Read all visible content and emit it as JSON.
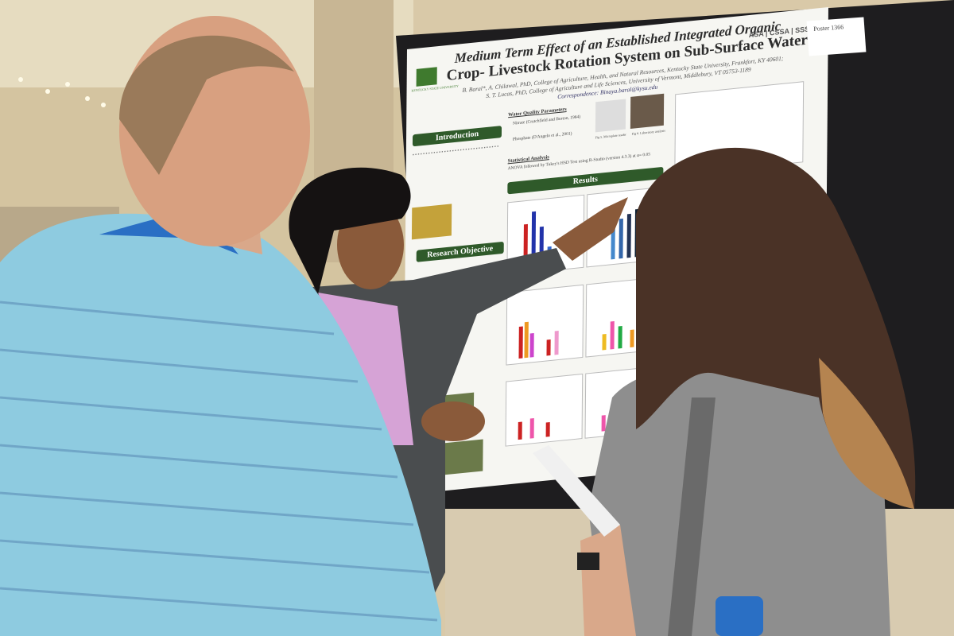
{
  "poster": {
    "title_line1": "Medium Term Effect of an Established Integrated Organic",
    "title_line2": "Crop- Livestock Rotation System on Sub-Surface Water Quality",
    "authors_line1": "B. Baral*, A. Chilawal, PhD, College of Agriculture, Health, and Natural Resources, Kentucky State University, Frankfort, KY 40601;",
    "authors_line2": "S. T. Lucas, PhD, College of Agriculture and Life Sciences, University of Vermont, Middlebury, VT 05753-1189",
    "correspondence": "Correspondence: Binaya.baral@kysu.edu",
    "logo_text": "KENTUCKY STATE UNIVERSITY",
    "societies": [
      "ASA",
      "CSSA",
      "SSSA"
    ],
    "sections": {
      "introduction": "Introduction",
      "research_objective": "Research Objective",
      "results": "Results",
      "water_quality": "Water Quality Parameters",
      "nitrate": "Nitrate (Crutchfield and Burton, 1984)",
      "phosphate": "Phosphate (D'Angelo et al., 2001)",
      "statistical": "Statistical Analysis",
      "statistical_text": "ANOVA followed by Tukey's HSD Test using R-Studio (version 4.3.3) at α= 0.05",
      "fig5": "Fig 5. Microplate reader",
      "fig6": "Fig 6. Laboratory analysis"
    }
  },
  "poster_tag": {
    "label": "Poster 1366"
  },
  "colors": {
    "poster_header": "#2f5a2a",
    "board": "#1e1d1f",
    "shirt_left": "#8ecbe0",
    "lanyard": "#2a6fc4"
  }
}
